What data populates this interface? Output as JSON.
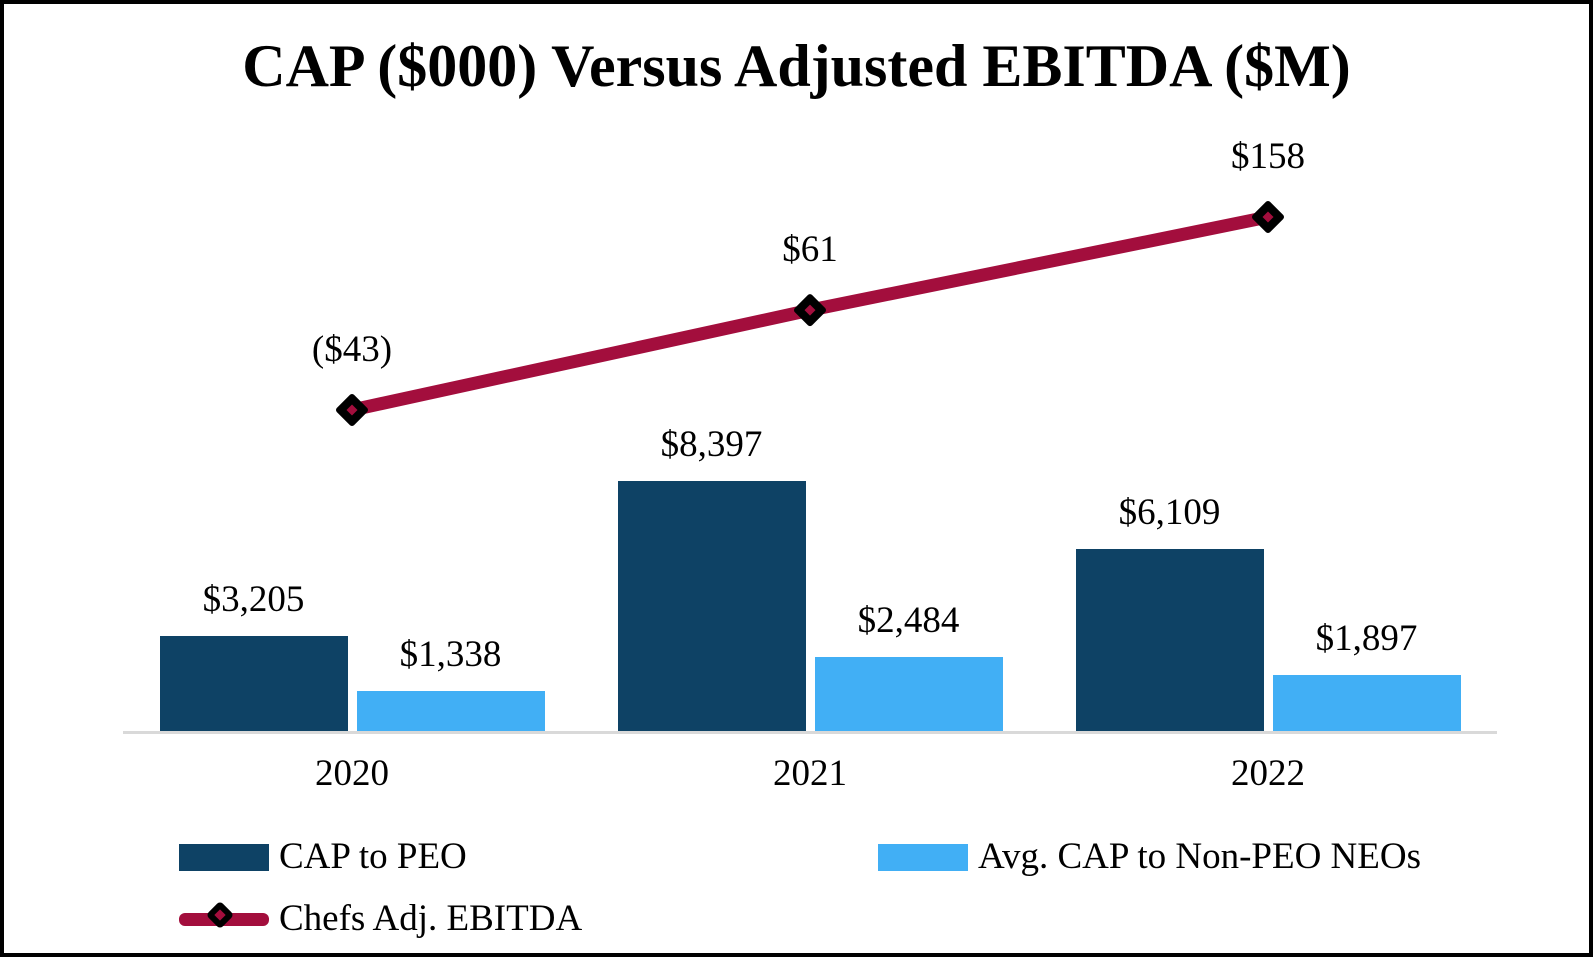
{
  "title": "CAP ($000) Versus Adjusted EBITDA ($M)",
  "colors": {
    "cap_to_peo_bar": "#0E4265",
    "avg_cap_non_peo_bar": "#41AFF5",
    "ebitda_line": "#A30E3D",
    "marker_outline": "#000000",
    "axis_line": "#D9D9D9",
    "text": "#000000",
    "frame_border": "#000000",
    "background": "#FFFFFF"
  },
  "chart_data": {
    "type": "bar+line combo",
    "title": "CAP ($000) Versus Adjusted EBITDA ($M)",
    "categories": [
      "2020",
      "2021",
      "2022"
    ],
    "bar_series": [
      {
        "name": "CAP to PEO",
        "values": [
          3205,
          8397,
          6109
        ],
        "labels": [
          "$3,205",
          "$8,397",
          "$6,109"
        ],
        "units": "$000",
        "color": "#0E4265"
      },
      {
        "name": "Avg. CAP to Non-PEO NEOs",
        "values": [
          1338,
          2484,
          1897
        ],
        "labels": [
          "$1,338",
          "$2,484",
          "$1,897"
        ],
        "units": "$000",
        "color": "#41AFF5"
      }
    ],
    "line_series": [
      {
        "name": "Chefs Adj. EBITDA",
        "values": [
          -43,
          61,
          158
        ],
        "labels": [
          "($43)",
          "$61",
          "$158"
        ],
        "units": "$M",
        "color": "#A30E3D",
        "marker": "diamond-black-outline-red-center"
      }
    ],
    "gridlines": false,
    "value_axes_visible": false,
    "legend_position": "bottom"
  },
  "legend": {
    "items": [
      {
        "label": "CAP to PEO",
        "swatch": "bar",
        "color": "#0E4265"
      },
      {
        "label": "Avg. CAP to Non-PEO NEOs",
        "swatch": "bar",
        "color": "#41AFF5"
      },
      {
        "label": "Chefs Adj. EBITDA",
        "swatch": "line-diamond",
        "color": "#A30E3D"
      }
    ]
  }
}
